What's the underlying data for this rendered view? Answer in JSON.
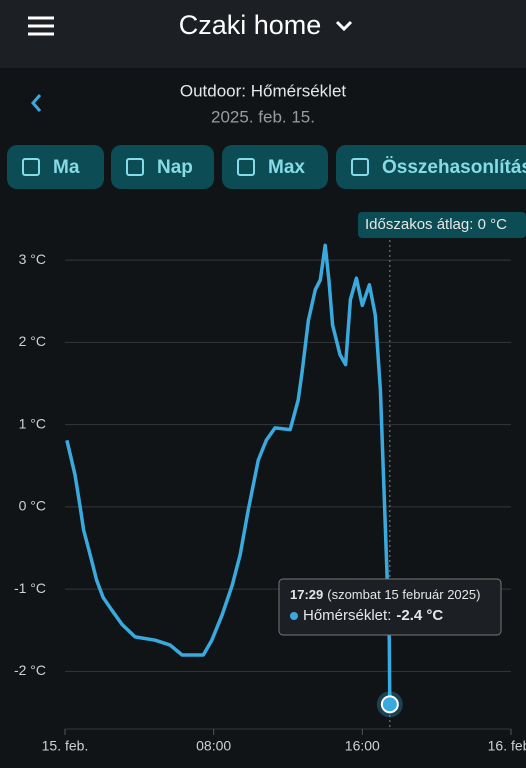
{
  "header": {
    "title": "Czaki home",
    "subtitle": "Outdoor: Hőmérséklet",
    "date": "2025. feb. 15."
  },
  "buttons": [
    "Ma",
    "Nap",
    "Max",
    "Összehasonlítás"
  ],
  "chart_data": {
    "type": "line",
    "annotation": "Időszakos átlag: 0 °C",
    "xlim": [
      0,
      24
    ],
    "xticks": [
      {
        "value": 0,
        "label": "15. feb."
      },
      {
        "value": 8,
        "label": "08:00"
      },
      {
        "value": 16,
        "label": "16:00"
      },
      {
        "value": 24,
        "label": "16. feb."
      }
    ],
    "ylim": [
      -2.7,
      3.5
    ],
    "yticks": [
      {
        "value": -2,
        "label": "-2 °C"
      },
      {
        "value": -1,
        "label": "-1 °C"
      },
      {
        "value": 0,
        "label": "0 °C"
      },
      {
        "value": 1,
        "label": "1 °C"
      },
      {
        "value": 2,
        "label": "2 °C"
      },
      {
        "value": 3,
        "label": "3 °C"
      }
    ],
    "grid": true,
    "series": [
      {
        "name": "Hőmérséklet:",
        "color": "#3aa9dd",
        "x": [
          0.1,
          0.54,
          0.8,
          1.0,
          1.35,
          1.7,
          2.05,
          2.5,
          3.07,
          3.77,
          4.85,
          5.66,
          6.3,
          7.44,
          7.9,
          8.46,
          9.0,
          9.43,
          9.86,
          10.4,
          10.83,
          11.3,
          12.12,
          12.55,
          12.77,
          13.1,
          13.47,
          13.74,
          14.0,
          14.2,
          14.4,
          14.8,
          15.1,
          15.36,
          15.68,
          16.0,
          16.38,
          16.7,
          16.97,
          17.3,
          17.45,
          17.48
        ],
        "values": [
          0.81,
          0.39,
          0.02,
          -0.28,
          -0.58,
          -0.89,
          -1.1,
          -1.25,
          -1.43,
          -1.58,
          -1.62,
          -1.68,
          -1.8,
          -1.8,
          -1.62,
          -1.31,
          -0.95,
          -0.58,
          -0.04,
          0.57,
          0.81,
          0.96,
          0.94,
          1.3,
          1.66,
          2.27,
          2.64,
          2.76,
          3.18,
          2.76,
          2.21,
          1.85,
          1.73,
          2.52,
          2.78,
          2.45,
          2.7,
          2.33,
          1.42,
          -0.64,
          -1.62,
          -2.4
        ]
      }
    ],
    "tooltip": {
      "time": "17:29",
      "date": "(szombat 15 február 2025)",
      "value": "-2.4 °C"
    }
  }
}
